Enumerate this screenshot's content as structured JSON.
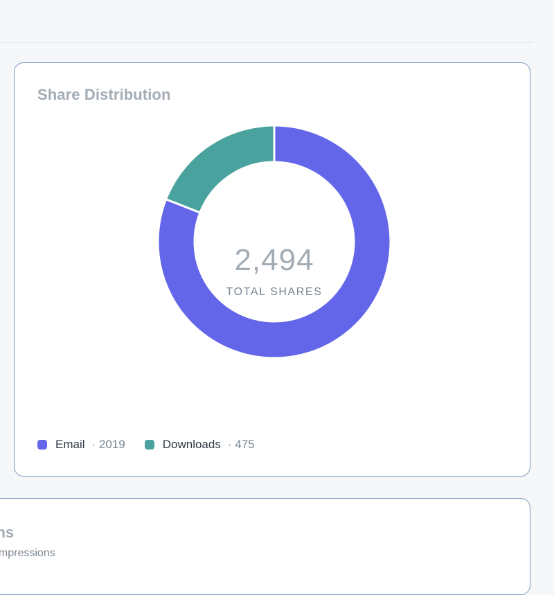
{
  "share_card": {
    "title": "Share Distribution",
    "center_value": "2,494",
    "center_label": "TOTAL SHARES"
  },
  "next_card": {
    "title_fragment": "ons",
    "subtitle_fragment": "e impressions"
  },
  "colors": {
    "email": "#6366e8",
    "downloads": "#4aa29e"
  },
  "chart_data": {
    "type": "pie",
    "style": "donut",
    "title": "Share Distribution",
    "total": 2494,
    "total_label": "TOTAL SHARES",
    "series": [
      {
        "name": "Email",
        "value": 2019,
        "color": "#6366e8"
      },
      {
        "name": "Downloads",
        "value": 475,
        "color": "#4aa29e"
      }
    ],
    "legend": "bottom-left"
  }
}
